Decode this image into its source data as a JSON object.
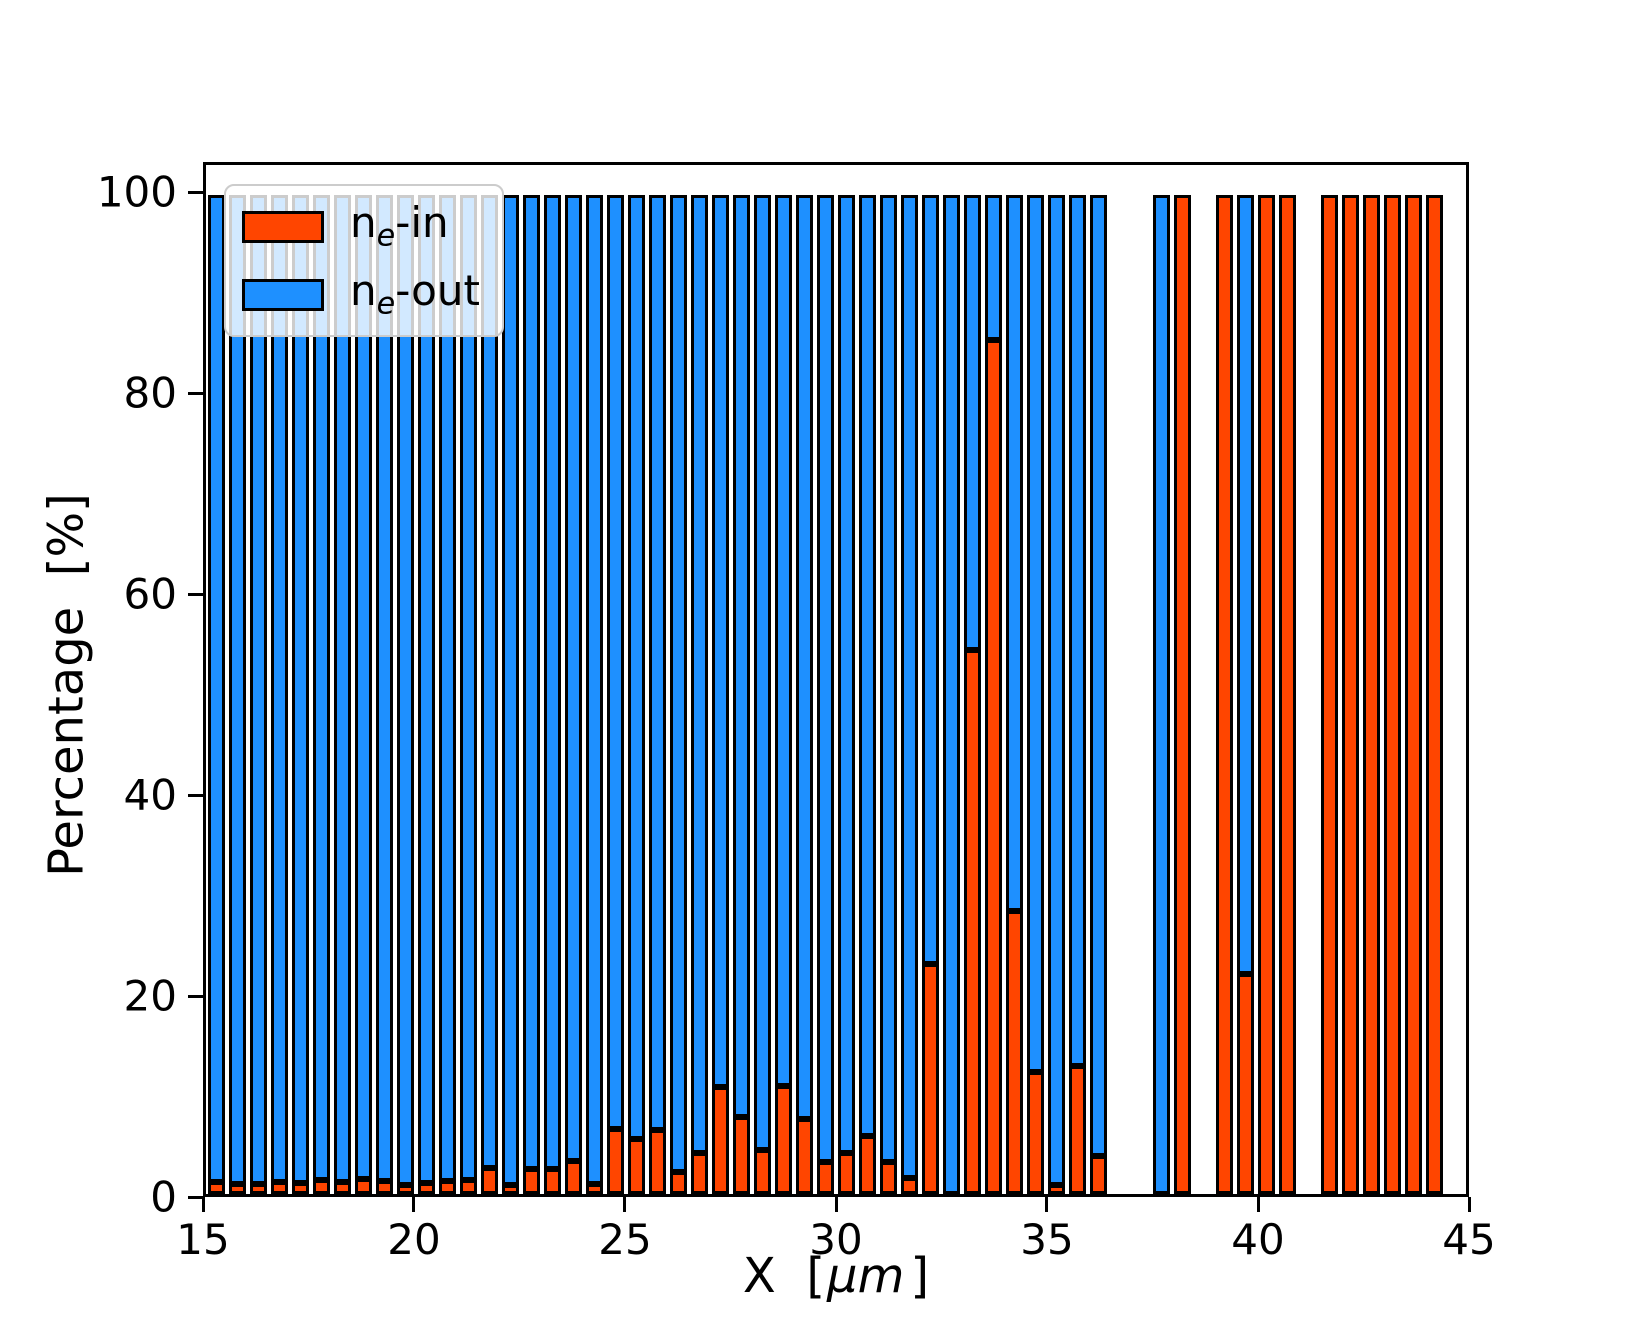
{
  "chart_data": {
    "type": "bar",
    "stacked": true,
    "orientation": "vertical",
    "title": "",
    "xlabel": "X  [μm]",
    "xlabel_parts": {
      "prefix": "X  [",
      "italic": "μm",
      "suffix": "]"
    },
    "ylabel": "Percentage  [%]",
    "xlim": [
      15,
      45
    ],
    "ylim": [
      0,
      103
    ],
    "grid": false,
    "bar_width": 0.42,
    "edge_color": "#000000",
    "xticks": [
      15,
      20,
      25,
      30,
      35,
      40,
      45
    ],
    "xtick_labels": [
      "15",
      "20",
      "25",
      "30",
      "35",
      "40",
      "45"
    ],
    "yticks": [
      0,
      20,
      40,
      60,
      80,
      100
    ],
    "ytick_labels": [
      "0",
      "20",
      "40",
      "60",
      "80",
      "100"
    ],
    "x": [
      15.25,
      15.75,
      16.25,
      16.75,
      17.25,
      17.75,
      18.25,
      18.75,
      19.25,
      19.75,
      20.25,
      20.75,
      21.25,
      21.75,
      22.25,
      22.75,
      23.25,
      23.75,
      24.25,
      24.75,
      25.25,
      25.75,
      26.25,
      26.75,
      27.25,
      27.75,
      28.25,
      28.75,
      29.25,
      29.75,
      30.25,
      30.75,
      31.25,
      31.75,
      32.25,
      32.75,
      33.25,
      33.75,
      34.25,
      34.75,
      35.25,
      35.75,
      36.25,
      36.75,
      37.25,
      37.75,
      38.25,
      38.75,
      39.25,
      39.75,
      40.25,
      40.75,
      41.25,
      41.75,
      42.25,
      42.75,
      43.25,
      43.75,
      44.25
    ],
    "series": [
      {
        "name": "n_e-in",
        "color": "#FF4500",
        "values": [
          1.2,
          1.0,
          1.0,
          1.2,
          1.1,
          1.4,
          1.2,
          1.5,
          1.3,
          0.9,
          1.1,
          1.3,
          1.4,
          2.6,
          0.9,
          2.5,
          2.5,
          3.3,
          1.0,
          6.5,
          5.5,
          6.4,
          2.2,
          4.1,
          10.7,
          7.7,
          4.4,
          10.8,
          7.5,
          3.2,
          4.1,
          5.8,
          3.2,
          1.6,
          23.0,
          0.0,
          54.5,
          85.5,
          28.3,
          12.2,
          0.9,
          12.8,
          3.8,
          null,
          null,
          0.0,
          100.0,
          null,
          100.0,
          22.0,
          100.0,
          100.0,
          null,
          100.0,
          100.0,
          100.0,
          100.0,
          100.0,
          100.0
        ]
      },
      {
        "name": "n_e-out",
        "color": "#1E90FF",
        "values": [
          98.8,
          99.0,
          99.0,
          98.8,
          98.9,
          98.6,
          98.8,
          98.5,
          98.7,
          99.1,
          98.9,
          98.7,
          98.6,
          97.4,
          99.1,
          97.5,
          97.5,
          96.7,
          99.0,
          93.5,
          94.5,
          93.6,
          97.8,
          95.9,
          89.3,
          92.3,
          95.6,
          89.2,
          92.5,
          96.8,
          95.9,
          94.2,
          96.8,
          98.4,
          77.0,
          100.0,
          45.5,
          14.5,
          71.7,
          87.8,
          99.1,
          87.2,
          96.2,
          null,
          null,
          100.0,
          0.0,
          null,
          0.0,
          78.0,
          0.0,
          0.0,
          null,
          0.0,
          0.0,
          0.0,
          0.0,
          0.0,
          0.0
        ]
      }
    ],
    "legend": {
      "position": "upper-left",
      "entries": [
        {
          "prefix": "n",
          "sub": "e",
          "suffix": "-in",
          "color": "#FF4500"
        },
        {
          "prefix": "n",
          "sub": "e",
          "suffix": "-out",
          "color": "#1E90FF"
        }
      ]
    }
  }
}
